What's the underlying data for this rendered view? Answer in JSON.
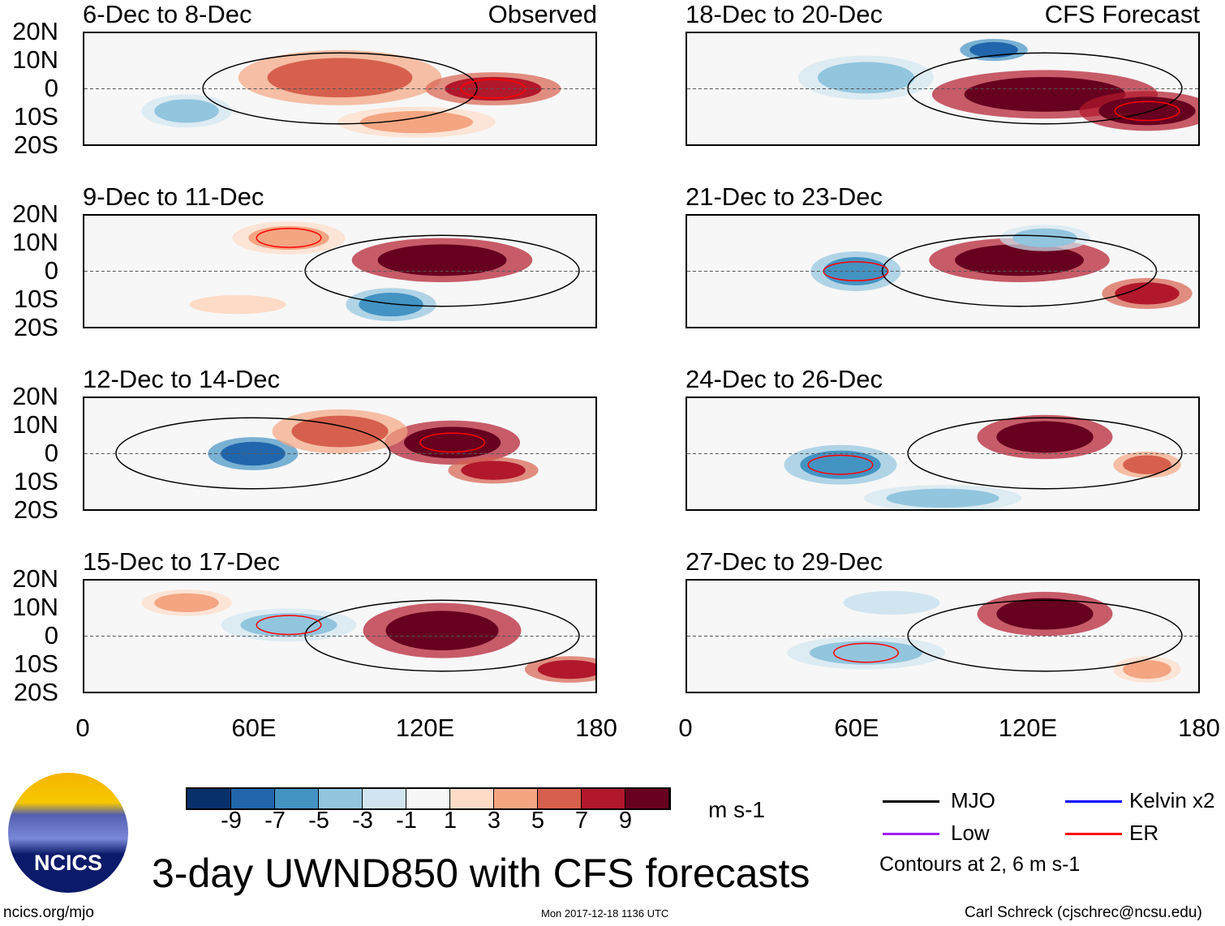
{
  "panels_left": [
    {
      "title": "6-Dec to 8-Dec",
      "tag": "Observed"
    },
    {
      "title": "9-Dec to 11-Dec",
      "tag": ""
    },
    {
      "title": "12-Dec to 14-Dec",
      "tag": ""
    },
    {
      "title": "15-Dec to 17-Dec",
      "tag": ""
    }
  ],
  "panels_right": [
    {
      "title": "18-Dec to 20-Dec",
      "tag": "CFS Forecast"
    },
    {
      "title": "21-Dec to 23-Dec",
      "tag": ""
    },
    {
      "title": "24-Dec to 26-Dec",
      "tag": ""
    },
    {
      "title": "27-Dec to 29-Dec",
      "tag": ""
    }
  ],
  "lat_labels": [
    "20N",
    "10N",
    "0",
    "10S",
    "20S"
  ],
  "lon_labels": [
    "0",
    "60E",
    "120E",
    "180"
  ],
  "colorbar": {
    "colors": [
      "#08306b",
      "#2166ac",
      "#4393c3",
      "#92c5de",
      "#d1e5f0",
      "#f7f7f7",
      "#fddbc7",
      "#f4a582",
      "#d6604d",
      "#b2182b",
      "#67001f"
    ],
    "labels": [
      "-9",
      "-7",
      "-5",
      "-3",
      "-1",
      "1",
      "3",
      "5",
      "7",
      "9"
    ],
    "units": "m s-1"
  },
  "legend": {
    "items": [
      {
        "label": "MJO",
        "color": "#000000"
      },
      {
        "label": "Kelvin x2",
        "color": "#0000ff"
      },
      {
        "label": "Low",
        "color": "#a020f0"
      },
      {
        "label": "ER",
        "color": "#ff0000"
      }
    ],
    "note": "Contours at 2, 6 m s-1"
  },
  "title": "3-day UWND850 with CFS forecasts",
  "logo_text": "NCICS",
  "footer": {
    "url": "ncics.org/mjo",
    "timestamp": "Mon 2017-12-18 1136 UTC",
    "author": "Carl Schreck (cjschrec@ncsu.edu)"
  }
}
